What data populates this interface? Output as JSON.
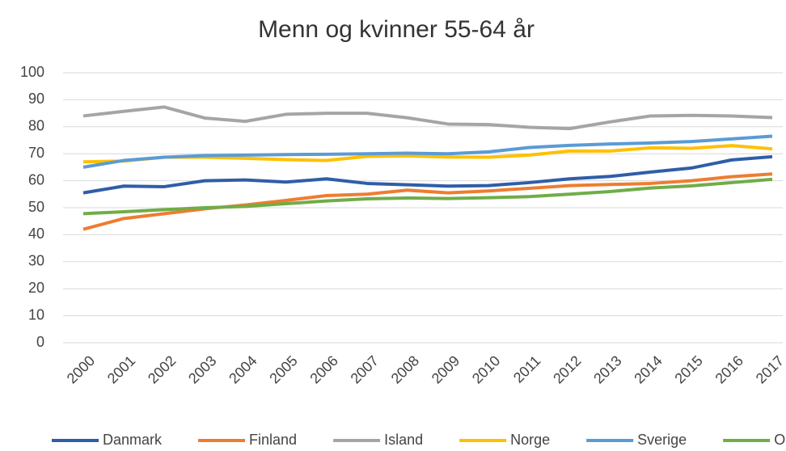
{
  "chart_data": {
    "type": "line",
    "title": "Menn og kvinner 55-64 år",
    "categories": [
      "2000",
      "2001",
      "2002",
      "2003",
      "2004",
      "2005",
      "2006",
      "2007",
      "2008",
      "2009",
      "2010",
      "2011",
      "2012",
      "2013",
      "2014",
      "2015",
      "2016",
      "2017"
    ],
    "series": [
      {
        "name": "Danmark",
        "color": "#2f5ea8",
        "values": [
          55.5,
          58,
          57.8,
          60,
          60.3,
          59.5,
          60.7,
          59,
          58.5,
          58,
          58.2,
          59.3,
          60.7,
          61.6,
          63.2,
          64.7,
          67.7,
          68.9
        ]
      },
      {
        "name": "Finland",
        "color": "#ed7d31",
        "values": [
          42,
          46,
          47.8,
          49.6,
          51,
          52.7,
          54.5,
          55,
          56.5,
          55.5,
          56.2,
          57.2,
          58.2,
          58.6,
          59,
          60,
          61.5,
          62.5
        ]
      },
      {
        "name": "Island",
        "color": "#a5a5a5",
        "values": [
          84,
          85.7,
          87.3,
          83.2,
          82,
          84.6,
          85,
          85,
          83.3,
          81,
          80.8,
          79.8,
          79.3,
          81.8,
          84,
          84.2,
          84,
          83.4
        ]
      },
      {
        "name": "Norge",
        "color": "#ffc000",
        "values": [
          67,
          67.3,
          68.7,
          68.7,
          68.3,
          67.8,
          67.5,
          69,
          69.2,
          68.8,
          68.7,
          69.5,
          71,
          71,
          72.2,
          72,
          73,
          71.8
        ]
      },
      {
        "name": "Sverige",
        "color": "#5b9bd5",
        "values": [
          65,
          67.5,
          68.7,
          69.3,
          69.5,
          69.7,
          69.8,
          70,
          70.2,
          70,
          70.7,
          72.3,
          73.1,
          73.6,
          74,
          74.5,
          75.5,
          76.5
        ]
      },
      {
        "name": "OECD",
        "color": "#70ad47",
        "values": [
          47.8,
          48.5,
          49.3,
          50,
          50.5,
          51.5,
          52.5,
          53.3,
          53.6,
          53.4,
          53.7,
          54.1,
          55,
          56,
          57.3,
          58.1,
          59.3,
          60.5
        ]
      }
    ],
    "ylim": [
      0,
      100
    ],
    "yticks": [
      0,
      10,
      20,
      30,
      40,
      50,
      60,
      70,
      80,
      90,
      100
    ],
    "grid": true,
    "legend": "bottom"
  }
}
